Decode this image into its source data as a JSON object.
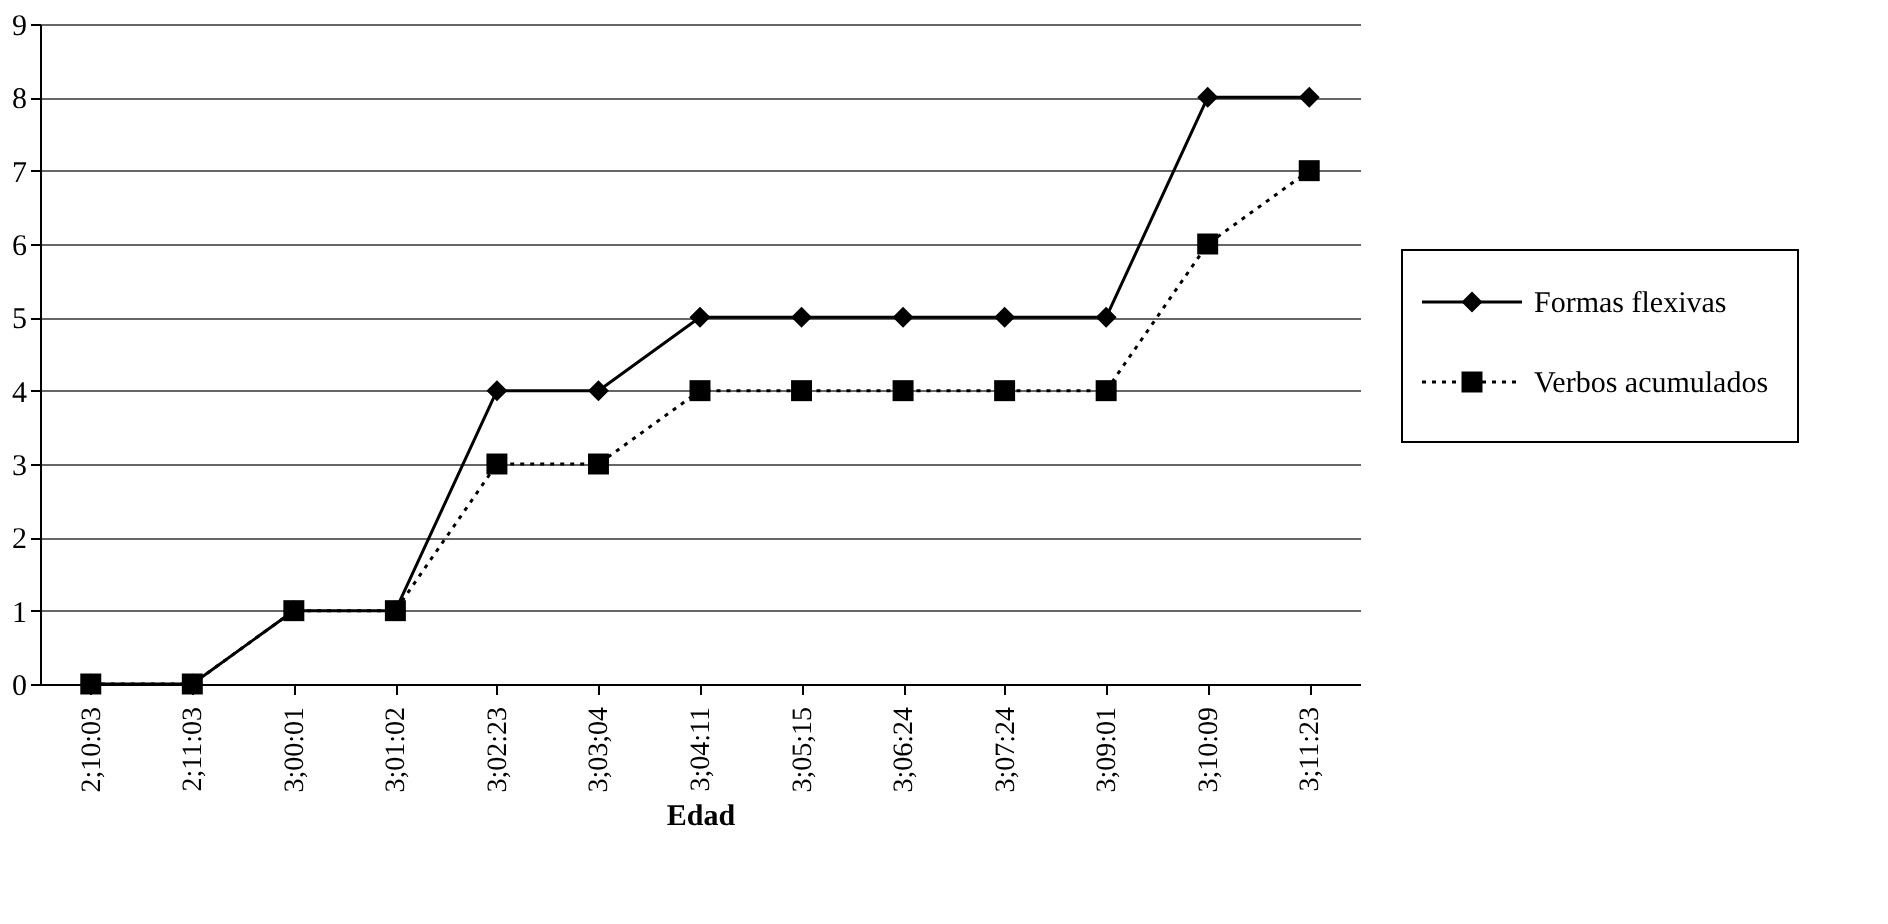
{
  "chart_data": {
    "type": "line",
    "xlabel": "Edad",
    "categories": [
      "2;10:03",
      "2;11:03",
      "3;00:01",
      "3;01:02",
      "3;02:23",
      "3;03;04",
      "3;04:11",
      "3;05;15",
      "3;06:24",
      "3;07:24",
      "3;09:01",
      "3;10:09",
      "3;11:23"
    ],
    "series": [
      {
        "name": "Formas flexivas",
        "color": "#000000",
        "marker": "diamond",
        "line_style": "solid",
        "values": [
          0,
          0,
          1,
          1,
          4,
          4,
          5,
          5,
          5,
          5,
          5,
          8,
          8
        ]
      },
      {
        "name": "Verbos acumulados",
        "color": "#000000",
        "marker": "square",
        "line_style": "dotted",
        "values": [
          0,
          0,
          1,
          1,
          3,
          3,
          4,
          4,
          4,
          4,
          4,
          6,
          7
        ]
      }
    ],
    "ylim": [
      0,
      9
    ],
    "yticks": [
      0,
      1,
      2,
      3,
      4,
      5,
      6,
      7,
      8,
      9
    ],
    "grid": "y",
    "legend": "right"
  }
}
